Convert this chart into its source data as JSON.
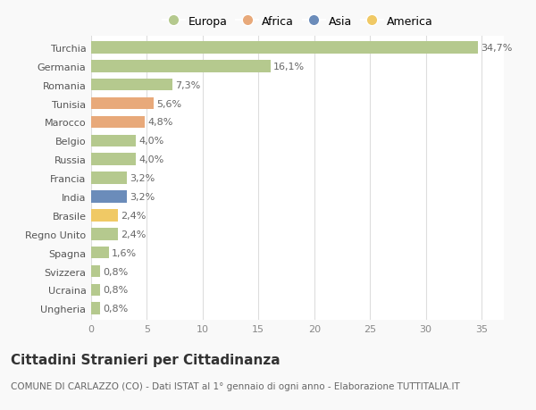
{
  "categories": [
    "Turchia",
    "Germania",
    "Romania",
    "Tunisia",
    "Marocco",
    "Belgio",
    "Russia",
    "Francia",
    "India",
    "Brasile",
    "Regno Unito",
    "Spagna",
    "Svizzera",
    "Ucraina",
    "Ungheria"
  ],
  "values": [
    34.7,
    16.1,
    7.3,
    5.6,
    4.8,
    4.0,
    4.0,
    3.2,
    3.2,
    2.4,
    2.4,
    1.6,
    0.8,
    0.8,
    0.8
  ],
  "labels": [
    "34,7%",
    "16,1%",
    "7,3%",
    "5,6%",
    "4,8%",
    "4,0%",
    "4,0%",
    "3,2%",
    "3,2%",
    "2,4%",
    "2,4%",
    "1,6%",
    "0,8%",
    "0,8%",
    "0,8%"
  ],
  "colors": [
    "#b5c98e",
    "#b5c98e",
    "#b5c98e",
    "#e8a97a",
    "#e8a97a",
    "#b5c98e",
    "#b5c98e",
    "#b5c98e",
    "#6b8cba",
    "#f0c965",
    "#b5c98e",
    "#b5c98e",
    "#b5c98e",
    "#b5c98e",
    "#b5c98e"
  ],
  "continent_colors": {
    "Europa": "#b5c98e",
    "Africa": "#e8a97a",
    "Asia": "#6b8cba",
    "America": "#f0c965"
  },
  "xlim": [
    0,
    37
  ],
  "xticks": [
    0,
    5,
    10,
    15,
    20,
    25,
    30,
    35
  ],
  "title": "Cittadini Stranieri per Cittadinanza",
  "subtitle": "COMUNE DI CARLAZZO (CO) - Dati ISTAT al 1° gennaio di ogni anno - Elaborazione TUTTITALIA.IT",
  "background_color": "#f9f9f9",
  "plot_background": "#ffffff",
  "grid_color": "#dddddd",
  "bar_height": 0.65,
  "title_fontsize": 11,
  "subtitle_fontsize": 7.5,
  "label_fontsize": 8,
  "tick_fontsize": 8,
  "legend_fontsize": 9
}
